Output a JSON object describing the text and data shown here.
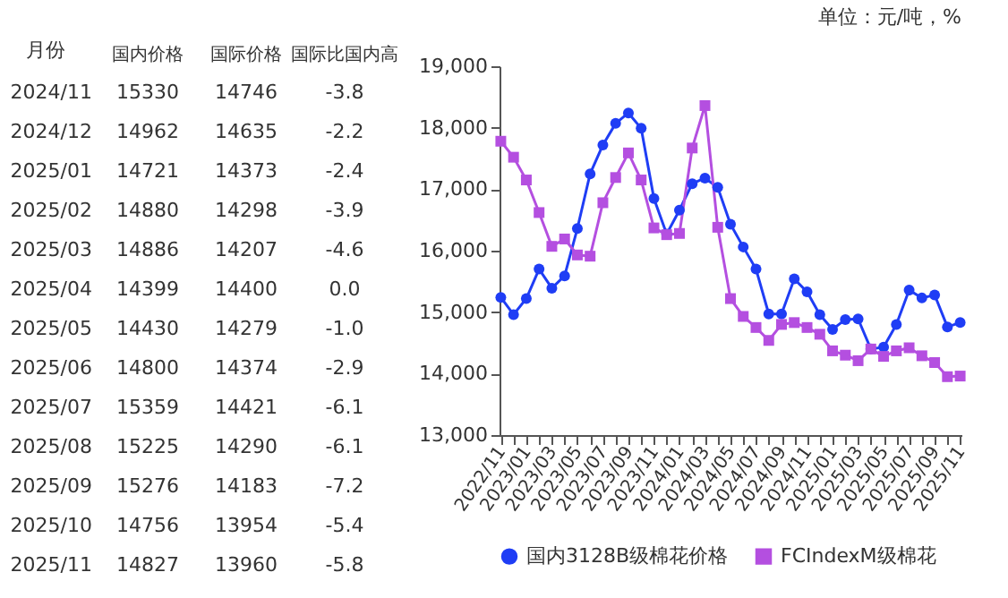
{
  "chart_data": [
    {
      "type": "heatmap",
      "ylabel": "月份",
      "categories": [
        "国内价格",
        "国际价格",
        "国际比国内高"
      ],
      "y_categories": [
        "2024/11",
        "2024/12",
        "2025/01",
        "2025/02",
        "2025/03",
        "2025/04",
        "2025/05",
        "2025/06",
        "2025/07",
        "2025/08",
        "2025/09",
        "2025/10",
        "2025/11"
      ],
      "cells": [
        [
          15330,
          14746,
          -3.8
        ],
        [
          14962,
          14635,
          -2.2
        ],
        [
          14721,
          14373,
          -2.4
        ],
        [
          14880,
          14298,
          -3.9
        ],
        [
          14886,
          14207,
          -4.6
        ],
        [
          14399,
          14400,
          0.0
        ],
        [
          14430,
          14279,
          -1.0
        ],
        [
          14800,
          14374,
          -2.9
        ],
        [
          15359,
          14421,
          -6.1
        ],
        [
          15225,
          14290,
          -6.1
        ],
        [
          15276,
          14183,
          -7.2
        ],
        [
          14756,
          13954,
          -5.4
        ],
        [
          14827,
          13960,
          -5.8
        ]
      ],
      "cell_labels": [
        [
          "15330",
          "14746",
          "-3.8"
        ],
        [
          "14962",
          "14635",
          "-2.2"
        ],
        [
          "14721",
          "14373",
          "-2.4"
        ],
        [
          "14880",
          "14298",
          "-3.9"
        ],
        [
          "14886",
          "14207",
          "-4.6"
        ],
        [
          "14399",
          "14400",
          "0.0"
        ],
        [
          "14430",
          "14279",
          "-1.0"
        ],
        [
          "14800",
          "14374",
          "-2.9"
        ],
        [
          "15359",
          "14421",
          "-6.1"
        ],
        [
          "15225",
          "14290",
          "-6.1"
        ],
        [
          "15276",
          "14183",
          "-7.2"
        ],
        [
          "14756",
          "13954",
          "-5.4"
        ],
        [
          "14827",
          "13960",
          "-5.8"
        ]
      ]
    },
    {
      "type": "line",
      "annotations": [
        "单位：元/吨，%"
      ],
      "categories": [
        "2022/11",
        null,
        "2023/01",
        null,
        "2023/03",
        null,
        "2023/05",
        null,
        "2023/07",
        null,
        "2023/09",
        null,
        "2023/11",
        null,
        "2024/01",
        null,
        "2024/03",
        null,
        "2024/05",
        null,
        "2024/07",
        null,
        "2024/09",
        null,
        "2024/11",
        null,
        "2025/01",
        null,
        "2025/03",
        null,
        "2025/05",
        null,
        "2025/07",
        null,
        "2025/09",
        null,
        "2025/11"
      ],
      "series": [
        {
          "name": "国内3128B级棉花价格",
          "color": "#1f3df5",
          "marker": "circle",
          "values": [
            15240,
            14960,
            15220,
            15700,
            15390,
            15590,
            16360,
            17250,
            17720,
            18070,
            18240,
            17990,
            16850,
            16270,
            16660,
            17090,
            17180,
            17030,
            16430,
            16060,
            15700,
            14970,
            14970,
            15540,
            15330,
            14960,
            14720,
            14880,
            14890,
            14400,
            14430,
            14800,
            15360,
            15230,
            15280,
            14760,
            14830
          ]
        },
        {
          "name": "FCIndexM级棉花",
          "color": "#b44fe0",
          "marker": "square",
          "values": [
            17780,
            17520,
            17150,
            16620,
            16070,
            16190,
            15930,
            15910,
            16780,
            17190,
            17590,
            17150,
            16370,
            16260,
            16280,
            17670,
            18360,
            16380,
            15220,
            14930,
            14750,
            14540,
            14800,
            14830,
            14750,
            14640,
            14370,
            14300,
            14210,
            14400,
            14280,
            14370,
            14420,
            14290,
            14180,
            13950,
            13960
          ]
        }
      ],
      "ylim": [
        13000,
        19000
      ],
      "yticks": [
        {
          "value": 13000,
          "label": "13,000"
        },
        {
          "value": 14000,
          "label": "14,000"
        },
        {
          "value": 15000,
          "label": "15,000"
        },
        {
          "value": 16000,
          "label": "16,000"
        },
        {
          "value": 17000,
          "label": "17,000"
        },
        {
          "value": 18000,
          "label": "18,000"
        },
        {
          "value": 19000,
          "label": "19,000"
        }
      ],
      "legend": "bottom",
      "grid": false
    }
  ]
}
